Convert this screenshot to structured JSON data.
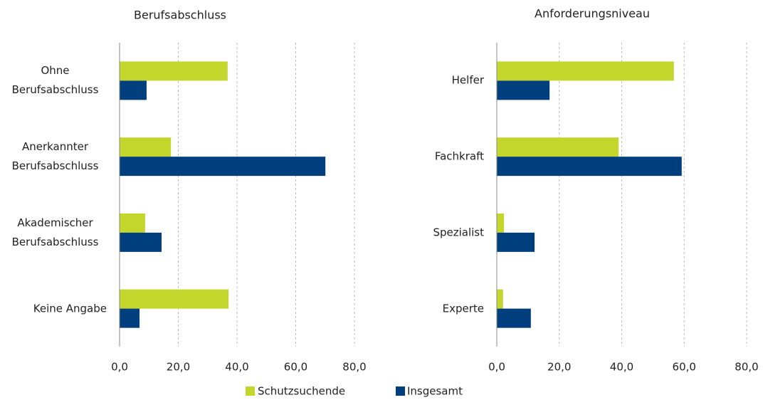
{
  "chart_data": [
    {
      "type": "hbar",
      "title": "Berufsabschluss",
      "categories": [
        "Ohne Berufsabschluss",
        "Anerkannter Berufsabschluss",
        "Akademischer Berufsabschluss",
        "Keine Angabe"
      ],
      "series": [
        {
          "name": "Schutzsuchende",
          "color": "#c3d62c",
          "values": [
            36.8,
            17.5,
            8.7,
            37.1
          ]
        },
        {
          "name": "Insgesamt",
          "color": "#003f7d",
          "values": [
            9.2,
            70.1,
            14.3,
            6.8
          ]
        }
      ],
      "xlim": [
        0,
        80
      ],
      "xticks": [
        {
          "value": 0,
          "label": "0,0"
        },
        {
          "value": 20,
          "label": "20,0"
        },
        {
          "value": 40,
          "label": "40,0"
        },
        {
          "value": 60,
          "label": "60,0"
        },
        {
          "value": 80,
          "label": "80,0"
        }
      ],
      "grid": true
    },
    {
      "type": "hbar",
      "title": "Anforderungsniveau",
      "categories": [
        "Helfer",
        "Fachkraft",
        "Spezialist",
        "Experte"
      ],
      "series": [
        {
          "color": "#c3d62c",
          "values": [
            56.7,
            39.0,
            2.3,
            2.0
          ]
        },
        {
          "color": "#003f7d",
          "values": [
            16.9,
            59.2,
            12.1,
            10.9
          ]
        }
      ],
      "xlim": [
        0,
        80
      ],
      "xticks": [
        {
          "value": 0,
          "label": "0,0"
        },
        {
          "value": 20,
          "label": "20,0"
        },
        {
          "value": 40,
          "label": "40,0"
        },
        {
          "value": 60,
          "label": "60,0"
        },
        {
          "value": 80,
          "label": "80,0"
        }
      ],
      "grid": true
    }
  ]
}
